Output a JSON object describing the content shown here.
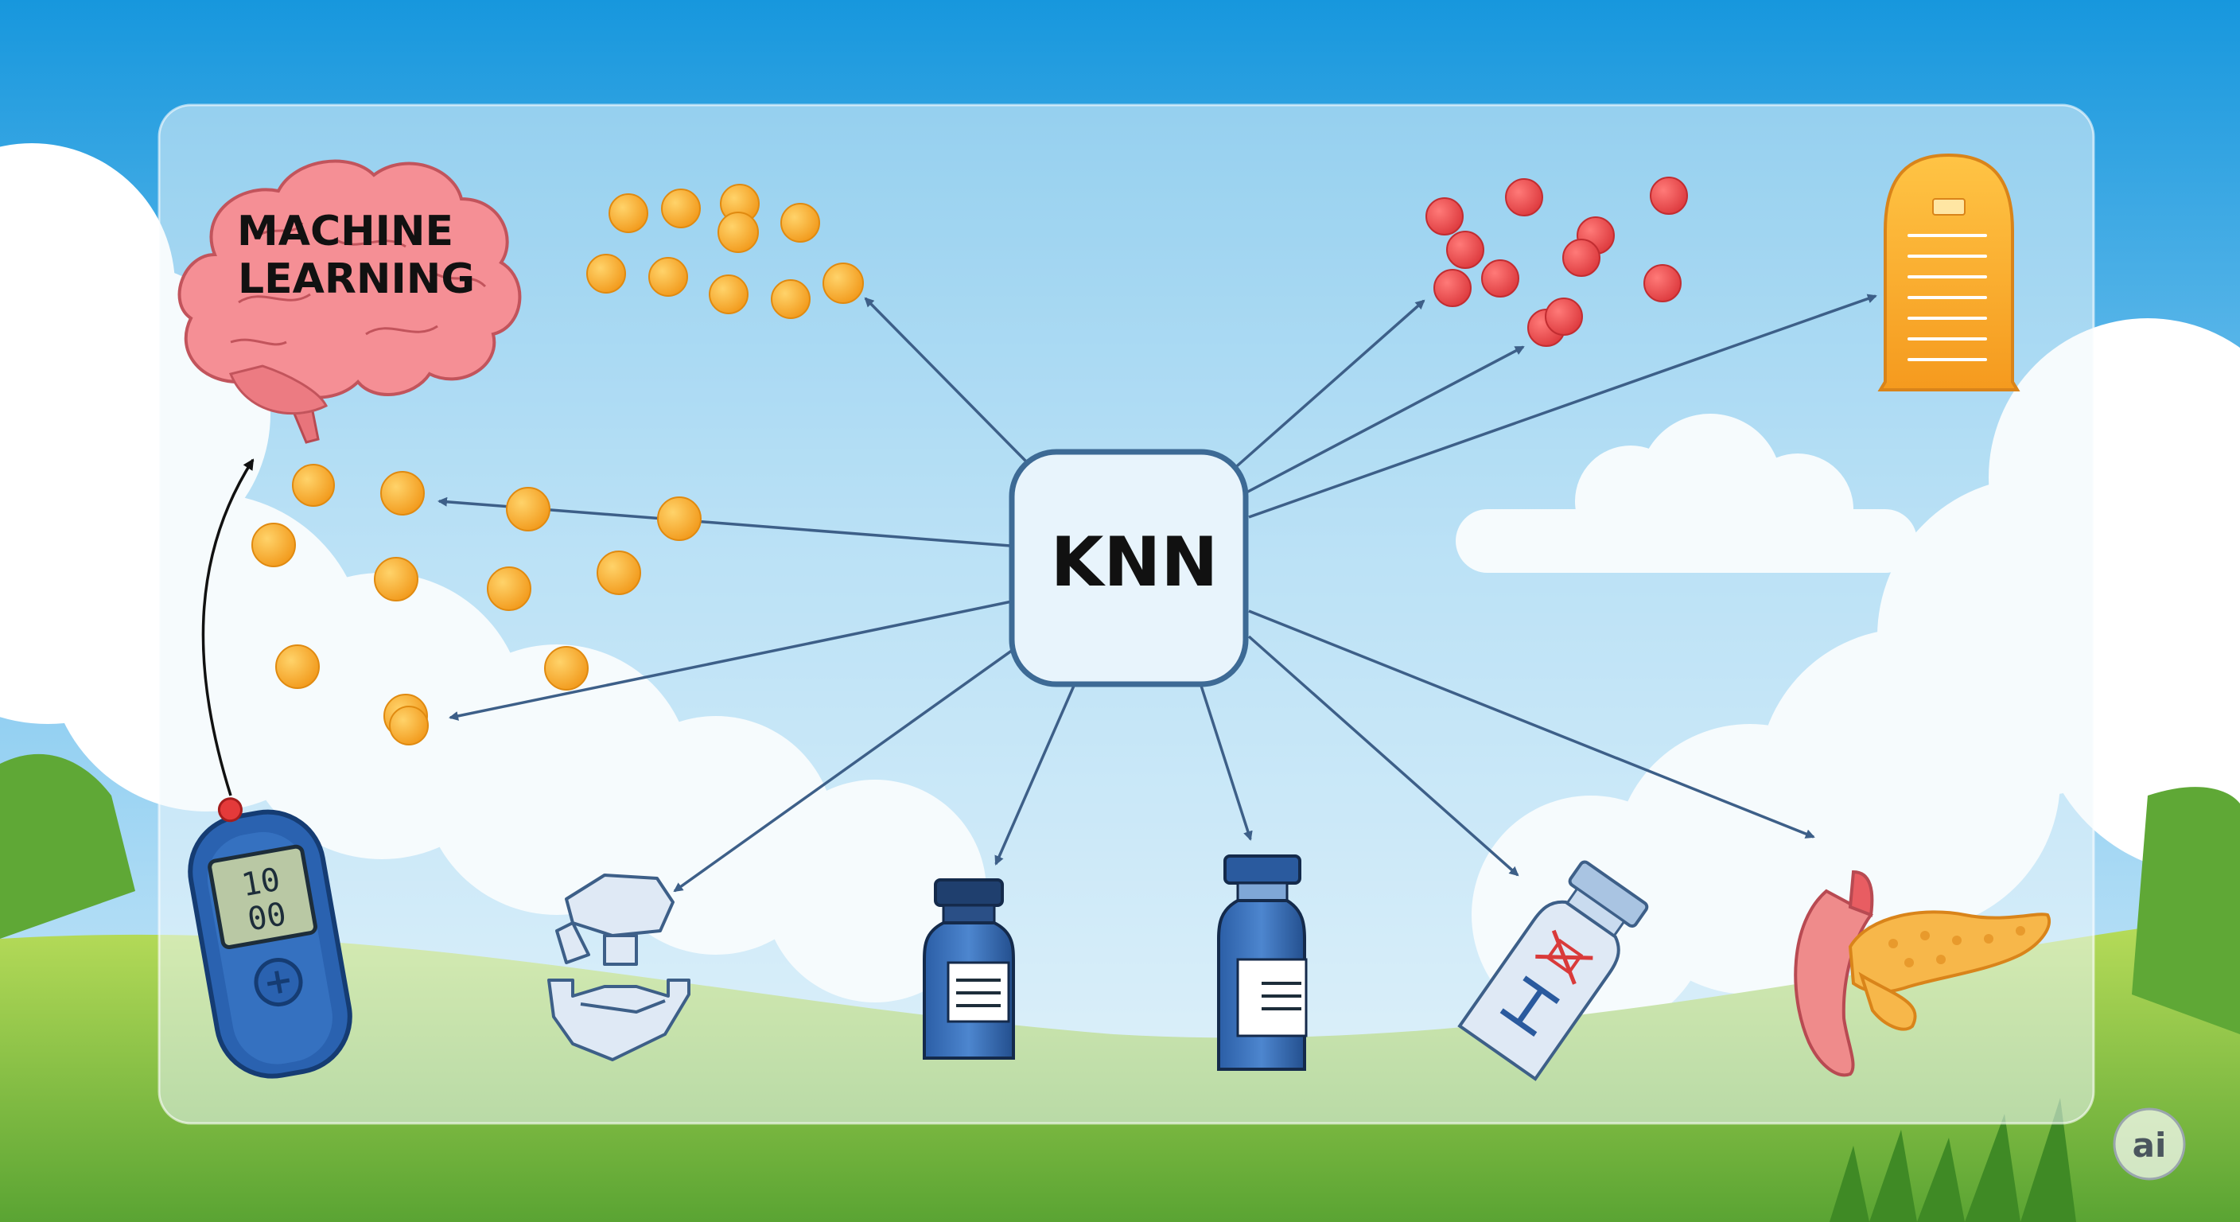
{
  "center_node": {
    "label": "KNN"
  },
  "brain": {
    "line1": "MACHINE",
    "line2": "LEARNING"
  },
  "meter": {
    "line1": "10",
    "line2": "00"
  },
  "watermark": {
    "label": "ai"
  },
  "colors": {
    "sky_top": "#1a9be0",
    "panel_fill": "#e9f4fb",
    "node_stroke": "#3d6a95",
    "arrow": "#3d5f88",
    "orange_point": "#f5a623",
    "red_point": "#e5474a",
    "brain_pink": "#f28a8f",
    "vial_blue": "#2f65ad",
    "grass": "#6db33f"
  },
  "icons": [
    "brain-icon",
    "glucose-meter-icon",
    "tablet-press-icon",
    "vial-icon",
    "medicine-bottle-icon",
    "tilted-vial-icon",
    "pancreas-icon",
    "report-document-icon"
  ]
}
